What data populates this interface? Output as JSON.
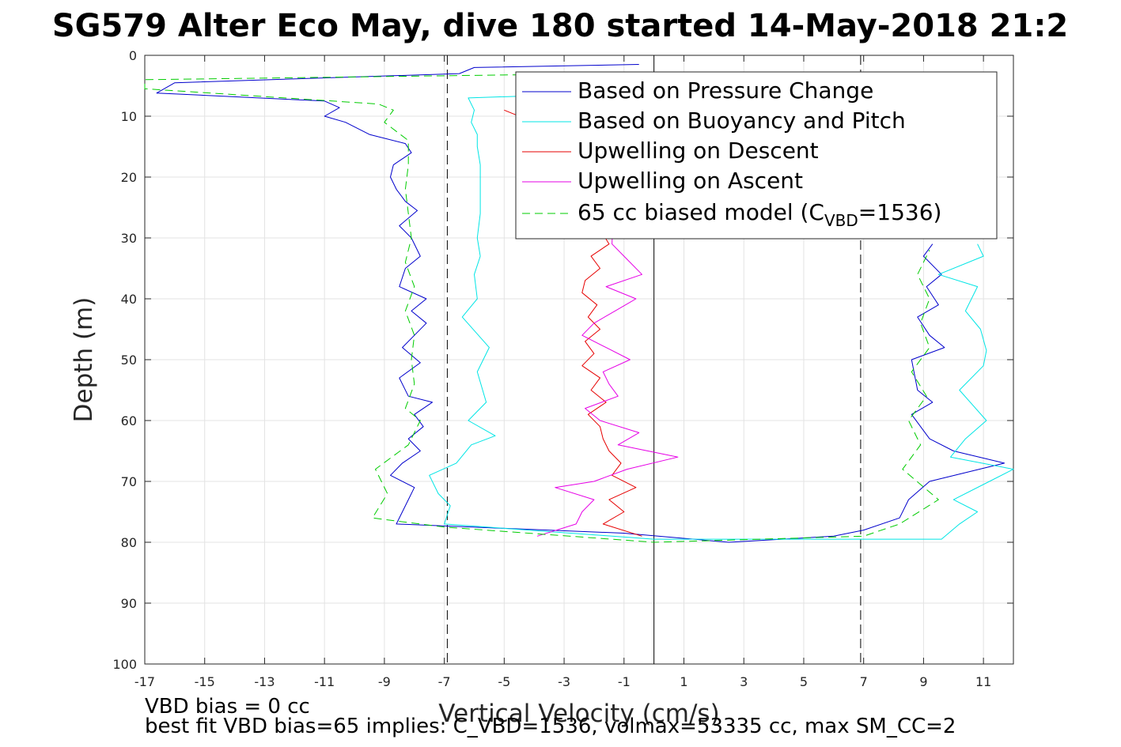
{
  "chart_data": {
    "type": "line",
    "title": "SG579 Alter Eco May, dive 180 started 14-May-2018 21:2",
    "xlabel": "Vertical Velocity (cm/s)",
    "ylabel": "Depth (m)",
    "xlim": [
      -17,
      12
    ],
    "ylim": [
      0,
      100
    ],
    "y_reversed": true,
    "grid": true,
    "xticks": [
      -17,
      -15,
      -13,
      -11,
      -9,
      -7,
      -5,
      -3,
      -1,
      1,
      3,
      5,
      7,
      9,
      11
    ],
    "yticks": [
      0,
      10,
      20,
      30,
      40,
      50,
      60,
      70,
      80,
      90,
      100
    ],
    "reference_lines": [
      {
        "x": -6.9,
        "style": "dashed",
        "color": "#000000"
      },
      {
        "x": 0,
        "style": "solid",
        "color": "#000000"
      },
      {
        "x": 6.9,
        "style": "dashed",
        "color": "#000000"
      }
    ],
    "legend_position": "top-right",
    "series": [
      {
        "name": "Based on Pressure Change",
        "color": "#0000cc",
        "style": "solid",
        "points": [
          [
            -0.5,
            1.5
          ],
          [
            -6,
            2
          ],
          [
            -6.5,
            3
          ],
          [
            -16,
            4.5
          ],
          [
            -16.6,
            6.2
          ],
          [
            -11,
            7.5
          ],
          [
            -10.5,
            8.6
          ],
          [
            -11,
            10
          ],
          [
            -10.3,
            11
          ],
          [
            -9.5,
            13
          ],
          [
            -8.3,
            14.5
          ],
          [
            -8.1,
            16
          ],
          [
            -8.7,
            18
          ],
          [
            -8.8,
            20
          ],
          [
            -8.6,
            22
          ],
          [
            -8.3,
            24
          ],
          [
            -7.9,
            25.5
          ],
          [
            -8.5,
            28
          ],
          [
            -8.1,
            30
          ],
          [
            -7.8,
            33
          ],
          [
            -8.3,
            35
          ],
          [
            -8.5,
            38
          ],
          [
            -7.6,
            40
          ],
          [
            -8.1,
            42
          ],
          [
            -7.6,
            44
          ],
          [
            -8.0,
            46
          ],
          [
            -8.4,
            48
          ],
          [
            -7.8,
            50.5
          ],
          [
            -8.5,
            53
          ],
          [
            -8.2,
            56
          ],
          [
            -7.4,
            57
          ],
          [
            -8.0,
            59
          ],
          [
            -7.7,
            61
          ],
          [
            -8.2,
            63
          ],
          [
            -7.8,
            65
          ],
          [
            -8.4,
            67
          ],
          [
            -8.8,
            69
          ],
          [
            -8.0,
            71
          ],
          [
            -8.2,
            73
          ],
          [
            -8.4,
            75
          ],
          [
            -8.6,
            77
          ],
          [
            -1.0,
            78.5
          ],
          [
            2.5,
            80
          ],
          [
            6,
            79
          ],
          [
            7,
            78
          ],
          [
            8.2,
            76
          ],
          [
            8.5,
            73
          ],
          [
            9.2,
            70
          ],
          [
            11.7,
            67
          ],
          [
            10,
            65
          ],
          [
            9.2,
            63
          ],
          [
            8.6,
            59
          ],
          [
            9.3,
            57
          ],
          [
            8.8,
            55
          ],
          [
            8.6,
            50
          ],
          [
            9.7,
            48
          ],
          [
            9.2,
            46
          ],
          [
            8.8,
            43
          ],
          [
            9.5,
            41
          ],
          [
            9.1,
            38
          ],
          [
            9.6,
            36
          ],
          [
            9.0,
            33
          ],
          [
            9.3,
            31
          ]
        ]
      },
      {
        "name": "Based on Buoyancy and Pitch",
        "color": "#00e5e5",
        "style": "solid",
        "points": [
          [
            -3.2,
            6.5
          ],
          [
            -6.2,
            7
          ],
          [
            -6.0,
            9
          ],
          [
            -6.1,
            11
          ],
          [
            -5.9,
            13
          ],
          [
            -5.9,
            15
          ],
          [
            -5.8,
            18
          ],
          [
            -5.8,
            22
          ],
          [
            -5.8,
            26
          ],
          [
            -5.9,
            30
          ],
          [
            -5.8,
            33
          ],
          [
            -6.0,
            36
          ],
          [
            -5.9,
            40
          ],
          [
            -6.4,
            43
          ],
          [
            -5.5,
            48
          ],
          [
            -5.9,
            52
          ],
          [
            -5.6,
            57
          ],
          [
            -6.2,
            60
          ],
          [
            -5.3,
            62.5
          ],
          [
            -6.1,
            64
          ],
          [
            -6.6,
            67
          ],
          [
            -7.5,
            69
          ],
          [
            -7.2,
            72
          ],
          [
            -6.8,
            74
          ],
          [
            -7.0,
            77
          ],
          [
            0,
            79.5
          ],
          [
            9.6,
            79.5
          ],
          [
            10.2,
            77
          ],
          [
            10.8,
            75
          ],
          [
            10.0,
            73
          ],
          [
            11.2,
            70
          ],
          [
            12,
            68
          ],
          [
            9.9,
            66
          ],
          [
            10.4,
            63
          ],
          [
            11.1,
            60
          ],
          [
            10.2,
            55
          ],
          [
            11,
            51
          ],
          [
            11.1,
            48.5
          ],
          [
            10.9,
            45
          ],
          [
            10.4,
            42
          ],
          [
            10.8,
            38
          ],
          [
            9.5,
            36
          ],
          [
            11,
            33
          ],
          [
            10.8,
            31
          ]
        ]
      },
      {
        "name": "Upwelling on Descent",
        "color": "#e60000",
        "style": "solid",
        "points": [
          [
            -5,
            9
          ],
          [
            -4,
            11
          ],
          [
            -1.5,
            31
          ],
          [
            -2.1,
            33
          ],
          [
            -1.8,
            35
          ],
          [
            -2.3,
            37
          ],
          [
            -2.4,
            39
          ],
          [
            -1.9,
            41
          ],
          [
            -2.2,
            43
          ],
          [
            -1.8,
            45
          ],
          [
            -2.3,
            47
          ],
          [
            -2.0,
            49
          ],
          [
            -2.4,
            51
          ],
          [
            -1.8,
            53
          ],
          [
            -2.1,
            55
          ],
          [
            -1.6,
            57
          ],
          [
            -2.2,
            59
          ],
          [
            -1.8,
            61
          ],
          [
            -1.7,
            63
          ],
          [
            -1.5,
            65
          ],
          [
            -1.1,
            67
          ],
          [
            -1.4,
            69
          ],
          [
            -0.6,
            71
          ],
          [
            -1.5,
            73
          ],
          [
            -1.0,
            75
          ],
          [
            -1.7,
            77
          ],
          [
            -0.4,
            79
          ]
        ]
      },
      {
        "name": "Upwelling on Ascent",
        "color": "#e600e6",
        "style": "solid",
        "points": [
          [
            -1.2,
            3
          ],
          [
            -1.4,
            31
          ],
          [
            -1.0,
            33
          ],
          [
            -0.4,
            36
          ],
          [
            -1.6,
            38
          ],
          [
            -0.6,
            40
          ],
          [
            -1.3,
            42
          ],
          [
            -2.0,
            44
          ],
          [
            -2.4,
            46
          ],
          [
            -1.6,
            48
          ],
          [
            -0.8,
            50
          ],
          [
            -1.7,
            52
          ],
          [
            -1.5,
            54
          ],
          [
            -1.2,
            56
          ],
          [
            -2.3,
            58
          ],
          [
            -1.8,
            60
          ],
          [
            -0.5,
            62
          ],
          [
            -1.2,
            64
          ],
          [
            0.8,
            66
          ],
          [
            -0.9,
            68
          ],
          [
            -2.0,
            70
          ],
          [
            -3.3,
            71
          ],
          [
            -2.0,
            73
          ],
          [
            -2.4,
            75
          ],
          [
            -2.6,
            77
          ],
          [
            -3.9,
            79
          ]
        ]
      },
      {
        "name": "65 cc biased model (C_VBD=1536)",
        "name_main": "65 cc biased model (C",
        "name_sub": "VBD",
        "name_end": "=1536)",
        "color": "#00cc00",
        "style": "dashed",
        "points": [
          [
            -1.5,
            3
          ],
          [
            -17,
            4
          ],
          [
            -17,
            5.5
          ],
          [
            -9.2,
            8
          ],
          [
            -8.7,
            9
          ],
          [
            -9.0,
            11
          ],
          [
            -8.2,
            14
          ],
          [
            -8.2,
            18
          ],
          [
            -8.3,
            22
          ],
          [
            -8.2,
            26
          ],
          [
            -8.1,
            30
          ],
          [
            -8.3,
            34
          ],
          [
            -8.0,
            38
          ],
          [
            -8.3,
            42
          ],
          [
            -8.0,
            46
          ],
          [
            -8.1,
            50
          ],
          [
            -8.0,
            54
          ],
          [
            -8.3,
            58
          ],
          [
            -7.8,
            60
          ],
          [
            -8.2,
            64
          ],
          [
            -9.3,
            68
          ],
          [
            -8.9,
            72
          ],
          [
            -9.4,
            76
          ],
          [
            -7.0,
            77.5
          ],
          [
            0,
            80
          ],
          [
            7,
            79
          ],
          [
            8.2,
            77
          ],
          [
            9.5,
            73
          ],
          [
            8.3,
            68
          ],
          [
            8.9,
            64
          ],
          [
            8.5,
            60
          ],
          [
            9.1,
            56
          ],
          [
            8.6,
            52
          ],
          [
            9.2,
            48
          ],
          [
            8.9,
            44
          ],
          [
            9.2,
            40
          ],
          [
            8.8,
            36
          ],
          [
            9.2,
            32
          ]
        ]
      }
    ]
  },
  "notes": {
    "line1": "VBD bias = 0 cc",
    "line2": "best fit VBD bias=65 implies: C_VBD=1536, volmax=53335 cc, max SM_CC=2"
  }
}
